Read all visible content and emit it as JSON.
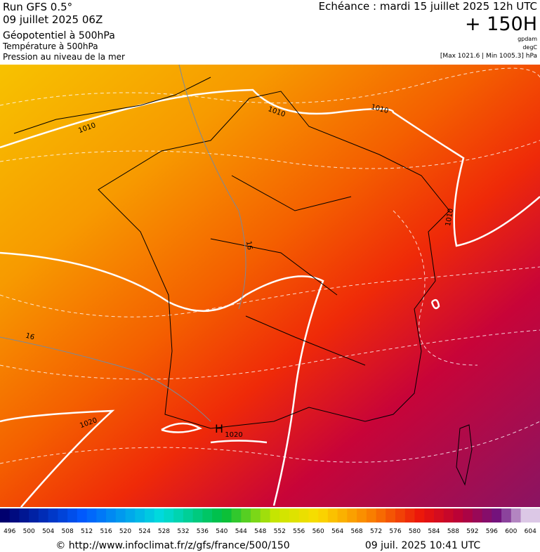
{
  "header": {
    "run": "Run GFS 0.5°",
    "date": "09 juillet 2025 06Z",
    "field1": "Géopotentiel à 500hPa",
    "field2": "Température à 500hPa",
    "field3": "Pression au niveau de la mer",
    "echeance": "Echéance : mardi 15 juillet 2025 12h UTC",
    "lead": "+ 150H",
    "unit1": "gpdam",
    "unit2": "degC",
    "range": "[Max 1021.6 | Min 1005.3] hPa"
  },
  "map": {
    "labels": [
      "1010",
      "1010",
      "1010",
      "1010",
      "1020",
      "1020",
      "16",
      "16",
      "H"
    ]
  },
  "colorbar": {
    "labels": [
      496,
      500,
      504,
      508,
      512,
      516,
      520,
      524,
      528,
      532,
      536,
      540,
      544,
      548,
      552,
      556,
      560,
      564,
      568,
      572,
      576,
      580,
      584,
      588,
      592,
      596,
      600,
      604
    ]
  },
  "footer": {
    "source": "© http://www.infoclimat.fr/z/gfs/france/500/150",
    "generated": "09 juil. 2025 10:41 UTC"
  }
}
